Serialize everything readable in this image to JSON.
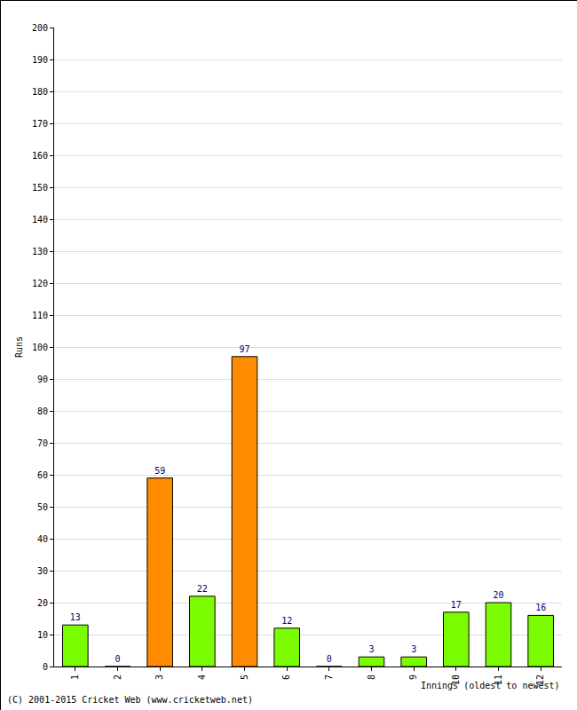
{
  "chart_data": {
    "type": "bar",
    "x_label": "Innings (oldest to newest)",
    "y_label": "Runs",
    "categories": [
      "1",
      "2",
      "3",
      "4",
      "5",
      "6",
      "7",
      "8",
      "9",
      "10",
      "11",
      "12"
    ],
    "values": [
      13,
      0,
      59,
      22,
      97,
      12,
      0,
      3,
      3,
      17,
      20,
      16
    ],
    "colors": [
      "#7cfc00",
      "#7cfc00",
      "#ff8c00",
      "#7cfc00",
      "#ff8c00",
      "#7cfc00",
      "#7cfc00",
      "#7cfc00",
      "#7cfc00",
      "#7cfc00",
      "#7cfc00",
      "#7cfc00"
    ],
    "ylim": [
      0,
      200
    ],
    "yticks": [
      0,
      10,
      20,
      30,
      40,
      50,
      60,
      70,
      80,
      90,
      100,
      110,
      120,
      130,
      140,
      150,
      160,
      170,
      180,
      190,
      200
    ],
    "grid": true,
    "data_labels": true,
    "annotations": [
      "(C) 2001-2015 Cricket Web (www.cricketweb.net)"
    ]
  }
}
